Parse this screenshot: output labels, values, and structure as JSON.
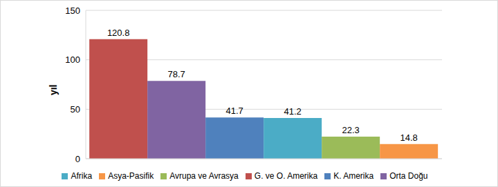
{
  "chart_data": {
    "type": "bar",
    "y_label": "yıl",
    "categories": [
      null
    ],
    "series": [
      {
        "name": "G. ve O. Amerika",
        "color": "#c0504d",
        "values": [
          120.8
        ]
      },
      {
        "name": "Orta Doğu",
        "color": "#8064a2",
        "values": [
          78.7
        ]
      },
      {
        "name": "K. Amerika",
        "color": "#4f81bd",
        "values": [
          41.7
        ]
      },
      {
        "name": "Afrika",
        "color": "#4bacc6",
        "values": [
          41.2
        ]
      },
      {
        "name": "Avrupa ve Avrasya",
        "color": "#9bbb59",
        "values": [
          22.3
        ]
      },
      {
        "name": "Asya-Pasifik",
        "color": "#f79646",
        "values": [
          14.8
        ]
      }
    ],
    "ylim": [
      0,
      150
    ],
    "yticks": [
      0,
      50,
      100,
      150
    ],
    "grid": true,
    "legend": "bottom",
    "data_labels": true
  }
}
